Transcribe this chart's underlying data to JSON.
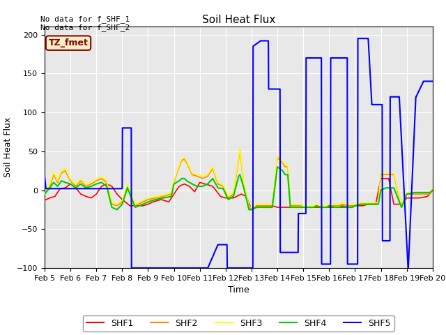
{
  "title": "Soil Heat Flux",
  "ylabel": "Soil Heat Flux",
  "xlabel": "Time",
  "ylim": [
    -100,
    210
  ],
  "yticks": [
    -100,
    -50,
    0,
    50,
    100,
    150,
    200
  ],
  "plot_bg": "#e8e8e8",
  "annotation_top": "No data for f_SHF_1\nNo data for f_SHF_2",
  "tz_label": "TZ_fmet",
  "tz_bg": "#f5f0c8",
  "tz_border": "#8b0000",
  "tz_text_color": "#8b0000",
  "legend_entries": [
    "SHF1",
    "SHF2",
    "SHF3",
    "SHF4",
    "SHF5"
  ],
  "line_colors": [
    "#ff0000",
    "#ff8800",
    "#ffff00",
    "#00cc00",
    "#0000ff"
  ],
  "shf5_x": [
    5.0,
    5.05,
    5.5,
    8.0,
    8.01,
    8.35,
    8.36,
    9.4,
    9.41,
    9.55,
    9.56,
    11.3,
    11.31,
    11.7,
    11.71,
    12.05,
    12.06,
    12.55,
    12.56,
    13.05,
    13.06,
    13.35,
    13.36,
    13.65,
    13.66,
    14.1,
    14.11,
    14.5,
    14.51,
    14.8,
    14.81,
    15.1,
    15.11,
    15.45,
    15.46,
    15.7,
    15.71,
    16.05,
    16.06,
    16.45,
    16.46,
    16.7,
    16.71,
    17.1,
    17.11,
    17.5,
    17.51,
    17.65,
    17.66,
    18.05,
    18.06,
    18.35,
    18.36,
    18.7,
    18.71,
    19.05,
    19.06,
    19.35,
    19.36,
    19.65,
    19.66,
    20.0
  ],
  "shf5_y": [
    18,
    2,
    2,
    2,
    80,
    80,
    -100,
    -100,
    -100,
    -100,
    -100,
    -100,
    -100,
    -70,
    -70,
    -70,
    -100,
    -100,
    -100,
    -100,
    185,
    192,
    192,
    192,
    130,
    130,
    -80,
    -80,
    -80,
    -80,
    -30,
    -30,
    170,
    170,
    170,
    170,
    -95,
    -95,
    170,
    170,
    170,
    170,
    -95,
    -95,
    195,
    195,
    195,
    110,
    110,
    110,
    -65,
    -65,
    120,
    120,
    120,
    -100,
    -100,
    120,
    120,
    140,
    140,
    140
  ],
  "shf1_x": [
    5.0,
    5.2,
    5.4,
    5.6,
    5.8,
    6.0,
    6.2,
    6.4,
    6.6,
    6.8,
    7.0,
    7.2,
    7.4,
    7.6,
    7.8,
    8.0,
    8.3,
    8.5,
    8.8,
    9.0,
    9.2,
    9.5,
    9.8,
    10.0,
    10.2,
    10.4,
    10.6,
    10.8,
    11.0,
    11.2,
    11.5,
    11.8,
    12.0,
    12.3,
    12.6,
    12.8,
    13.0,
    13.2,
    13.5,
    13.8,
    14.0,
    14.3,
    14.5,
    14.8,
    15.0,
    15.3,
    15.5,
    15.8,
    16.0,
    16.3,
    16.5,
    16.8,
    17.0,
    17.3,
    17.5,
    17.8,
    18.0,
    18.3,
    18.5,
    18.8,
    19.0,
    19.3,
    19.5,
    19.8,
    20.0
  ],
  "shf1_y": [
    -13,
    -10,
    -8,
    2,
    3,
    8,
    3,
    -5,
    -8,
    -10,
    -5,
    5,
    8,
    5,
    -5,
    -12,
    -20,
    -20,
    -20,
    -18,
    -15,
    -12,
    -15,
    -5,
    5,
    8,
    5,
    -2,
    10,
    8,
    5,
    -8,
    -10,
    -10,
    -5,
    -8,
    -25,
    -20,
    -20,
    -20,
    -22,
    -22,
    -22,
    -22,
    -22,
    -22,
    -22,
    -22,
    -22,
    -22,
    -22,
    -22,
    -20,
    -20,
    -18,
    -18,
    15,
    15,
    -18,
    -18,
    -10,
    -10,
    -10,
    -8,
    0
  ],
  "shf2_x": [
    5.0,
    5.2,
    5.35,
    5.5,
    5.65,
    5.8,
    6.0,
    6.2,
    6.4,
    6.6,
    6.8,
    7.0,
    7.2,
    7.4,
    7.6,
    7.8,
    8.0,
    8.2,
    8.5,
    8.8,
    9.0,
    9.3,
    9.6,
    9.9,
    10.0,
    10.2,
    10.3,
    10.4,
    10.5,
    10.7,
    10.9,
    11.1,
    11.3,
    11.5,
    11.7,
    11.9,
    12.1,
    12.3,
    12.5,
    12.55,
    12.7,
    12.9,
    13.0,
    13.2,
    13.4,
    13.5,
    13.6,
    13.8,
    14.0,
    14.2,
    14.3,
    14.4,
    14.5,
    14.7,
    14.9,
    15.0,
    15.2,
    15.4,
    15.5,
    15.7,
    15.9,
    16.0,
    16.2,
    16.4,
    16.5,
    16.7,
    16.9,
    17.0,
    17.2,
    17.4,
    17.5,
    17.7,
    17.9,
    18.0,
    18.2,
    18.5,
    18.8,
    19.0,
    19.3,
    19.6,
    19.9,
    20.0
  ],
  "shf2_y": [
    -5,
    5,
    20,
    10,
    22,
    25,
    12,
    5,
    12,
    5,
    8,
    12,
    15,
    10,
    -18,
    -20,
    -15,
    5,
    -20,
    -15,
    -12,
    -10,
    -8,
    -5,
    10,
    30,
    38,
    40,
    35,
    20,
    18,
    15,
    18,
    28,
    8,
    5,
    -10,
    -5,
    40,
    52,
    8,
    -22,
    -25,
    -20,
    -20,
    -20,
    -20,
    -20,
    42,
    35,
    30,
    30,
    -20,
    -20,
    -20,
    -22,
    -22,
    -22,
    -20,
    -22,
    -22,
    -20,
    -20,
    -20,
    -18,
    -20,
    -20,
    -20,
    -18,
    -18,
    -18,
    -18,
    -18,
    20,
    20,
    20,
    -22,
    -5,
    -5,
    -5,
    -5,
    0
  ],
  "shf3_x": [
    5.0,
    5.2,
    5.35,
    5.5,
    5.65,
    5.8,
    6.0,
    6.2,
    6.4,
    6.6,
    6.8,
    7.0,
    7.2,
    7.4,
    7.6,
    7.8,
    8.0,
    8.2,
    8.5,
    8.8,
    9.0,
    9.3,
    9.6,
    9.9,
    10.0,
    10.2,
    10.3,
    10.4,
    10.5,
    10.7,
    10.9,
    11.1,
    11.3,
    11.5,
    11.7,
    11.9,
    12.1,
    12.3,
    12.5,
    12.55,
    12.7,
    12.9,
    13.0,
    13.2,
    13.4,
    13.5,
    13.6,
    13.8,
    14.0,
    14.2,
    14.3,
    14.4,
    14.5,
    14.7,
    14.9,
    15.0,
    15.2,
    15.4,
    15.5,
    15.7,
    15.9,
    16.0,
    16.2,
    16.4,
    16.5,
    16.7,
    16.9,
    17.0,
    17.2,
    17.4,
    17.5,
    17.7,
    17.9,
    18.0,
    18.2,
    18.5,
    18.8,
    19.0,
    19.3,
    19.6,
    19.9,
    20.0
  ],
  "shf3_y": [
    -5,
    8,
    23,
    12,
    25,
    28,
    14,
    7,
    14,
    7,
    10,
    14,
    18,
    12,
    -16,
    -18,
    -13,
    8,
    -18,
    -13,
    -10,
    -8,
    -6,
    -3,
    12,
    32,
    40,
    42,
    37,
    22,
    20,
    18,
    20,
    30,
    10,
    7,
    -8,
    -3,
    42,
    54,
    10,
    -20,
    -23,
    -18,
    -18,
    -18,
    -18,
    -18,
    44,
    37,
    32,
    32,
    -18,
    -18,
    -18,
    -20,
    -20,
    -20,
    -18,
    -20,
    -20,
    -18,
    -18,
    -18,
    -16,
    -18,
    -18,
    -18,
    -16,
    -16,
    -16,
    -16,
    -16,
    22,
    22,
    22,
    -20,
    -3,
    -3,
    -3,
    -3,
    2
  ],
  "shf4_x": [
    5.0,
    5.2,
    5.35,
    5.5,
    5.65,
    5.8,
    6.0,
    6.2,
    6.4,
    6.6,
    6.8,
    7.0,
    7.2,
    7.4,
    7.6,
    7.8,
    8.0,
    8.2,
    8.5,
    8.8,
    9.0,
    9.3,
    9.6,
    9.9,
    10.0,
    10.2,
    10.3,
    10.4,
    10.5,
    10.7,
    10.9,
    11.1,
    11.3,
    11.5,
    11.7,
    11.9,
    12.1,
    12.3,
    12.5,
    12.55,
    12.7,
    12.9,
    13.0,
    13.2,
    13.4,
    13.5,
    13.6,
    13.8,
    14.0,
    14.2,
    14.3,
    14.4,
    14.5,
    14.7,
    14.9,
    15.0,
    15.2,
    15.4,
    15.5,
    15.7,
    15.9,
    16.0,
    16.2,
    16.4,
    16.5,
    16.7,
    16.9,
    17.0,
    17.2,
    17.4,
    17.5,
    17.7,
    17.9,
    18.0,
    18.2,
    18.5,
    18.8,
    19.0,
    19.3,
    19.6,
    19.9,
    20.0
  ],
  "shf4_y": [
    -5,
    3,
    10,
    5,
    12,
    10,
    8,
    3,
    8,
    3,
    5,
    8,
    10,
    5,
    -22,
    -25,
    -18,
    3,
    -22,
    -18,
    -15,
    -12,
    -10,
    -8,
    8,
    12,
    15,
    15,
    12,
    8,
    5,
    5,
    8,
    15,
    3,
    2,
    -12,
    -8,
    18,
    20,
    3,
    -25,
    -25,
    -22,
    -22,
    -22,
    -22,
    -22,
    30,
    25,
    20,
    20,
    -22,
    -22,
    -22,
    -22,
    -22,
    -22,
    -20,
    -22,
    -22,
    -20,
    -22,
    -22,
    -20,
    -22,
    -22,
    -20,
    -18,
    -18,
    -18,
    -18,
    -18,
    0,
    3,
    3,
    -22,
    -5,
    -3,
    -3,
    -3,
    0
  ],
  "xtick_labels": [
    "Feb 5",
    "Feb 6",
    "Feb 7",
    "Feb 8",
    "Feb 9",
    "Feb 10",
    "Feb 11",
    "Feb 12",
    "Feb 13",
    "Feb 14",
    "Feb 15",
    "Feb 16",
    "Feb 17",
    "Feb 18",
    "Feb 19",
    "Feb 20"
  ],
  "xtick_positions": [
    5,
    6,
    7,
    8,
    9,
    10,
    11,
    12,
    13,
    14,
    15,
    16,
    17,
    18,
    19,
    20
  ]
}
